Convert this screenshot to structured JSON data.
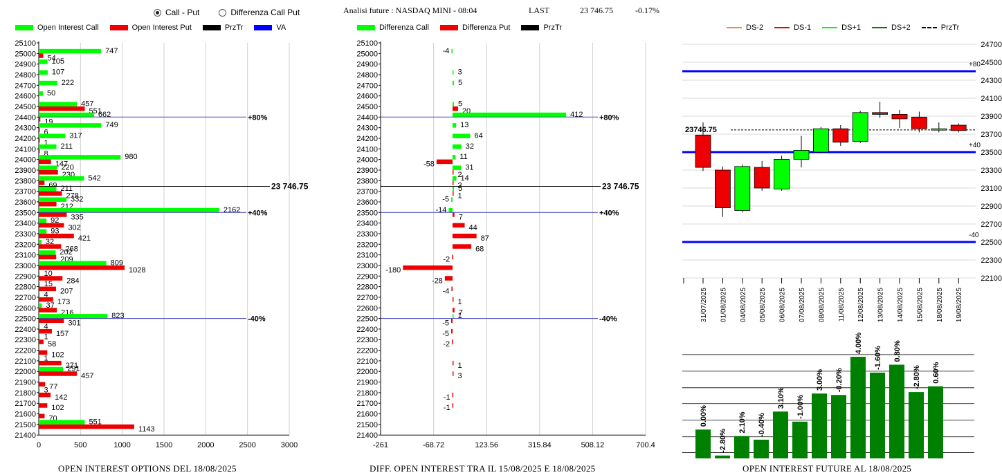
{
  "header": {
    "radio_call_put": "Call - Put",
    "radio_diff": "Differenza Call Put",
    "title": "Analisi future : NASDAQ MINI - 08:04",
    "last_label": "LAST",
    "last_value": "23 746.75",
    "change": "-0.17%"
  },
  "colors": {
    "green": "#00ff00",
    "red": "#ee0000",
    "blue": "#0000ff",
    "dark_green": "#008000",
    "light_red": "#f08060"
  },
  "legend_left": [
    "Open Interest Call",
    "Open Interest Put",
    "PrzTr",
    "VA"
  ],
  "legend_mid": [
    "Differenza Call",
    "Differenza Put",
    "PrzTr"
  ],
  "legend_right": [
    "DS-2",
    "DS-1",
    "DS+1",
    "DS+2",
    "PrzTr"
  ],
  "captions": {
    "left": "OPEN INTEREST OPTIONS DEL 18/08/2025",
    "mid": "DIFF. OPEN INTEREST TRA IL 15/08/2025 E 18/08/2025",
    "right": "OPEN INTEREST FUTURE AL 18/08/2025"
  },
  "chart_data": [
    {
      "type": "bar",
      "orientation": "horizontal",
      "strikes": [
        25100,
        25000,
        24900,
        24800,
        24700,
        24600,
        24500,
        24400,
        24300,
        24200,
        24100,
        24000,
        23900,
        23800,
        23700,
        23600,
        23500,
        23400,
        23300,
        23200,
        23100,
        23000,
        22900,
        22800,
        22700,
        22600,
        22500,
        22400,
        22300,
        22200,
        22100,
        22000,
        21900,
        21800,
        21700,
        21600,
        21500,
        21400
      ],
      "series": [
        {
          "name": "Open Interest Call",
          "values": [
            null,
            747,
            105,
            107,
            222,
            50,
            457,
            662,
            749,
            317,
            211,
            980,
            220,
            542,
            211,
            332,
            2162,
            92,
            93,
            32,
            202,
            809,
            10,
            15,
            4,
            37,
            823,
            4,
            1,
            null,
            1,
            291,
            null,
            3,
            null,
            null,
            551,
            null
          ]
        },
        {
          "name": "Open Interest Put",
          "values": [
            null,
            54,
            null,
            null,
            null,
            null,
            551,
            19,
            6,
            1,
            8,
            147,
            230,
            69,
            278,
            212,
            335,
            302,
            421,
            268,
            209,
            1028,
            284,
            207,
            173,
            216,
            301,
            157,
            58,
            102,
            271,
            457,
            77,
            142,
            102,
            70,
            1143,
            null
          ]
        }
      ],
      "xticks": [
        "0",
        "500",
        "1000",
        "1500",
        "2000",
        "2500",
        "3000"
      ],
      "xlim": [
        0,
        3000
      ],
      "przTr": {
        "value": 23746.75,
        "label": "23 746.75"
      },
      "va_lines": [
        {
          "strike": 24400,
          "label": "+80%"
        },
        {
          "strike": 23500,
          "label": "+40%"
        },
        {
          "strike": 22500,
          "label": "-40%"
        }
      ]
    },
    {
      "type": "bar",
      "orientation": "horizontal",
      "strikes": [
        25100,
        25000,
        24900,
        24800,
        24700,
        24600,
        24500,
        24400,
        24300,
        24200,
        24100,
        24000,
        23900,
        23800,
        23700,
        23600,
        23500,
        23400,
        23300,
        23200,
        23100,
        23000,
        22900,
        22800,
        22700,
        22600,
        22500,
        22400,
        22300,
        22200,
        22100,
        22000,
        21900,
        21800,
        21700,
        21600,
        21500,
        21400
      ],
      "series": [
        {
          "name": "Differenza Call",
          "values": [
            null,
            -4,
            null,
            3,
            5,
            null,
            5,
            412,
            13,
            64,
            32,
            11,
            31,
            14,
            5,
            -5,
            -14,
            null,
            null,
            null,
            null,
            null,
            null,
            null,
            null,
            null,
            1,
            null,
            null,
            null,
            null,
            null,
            null,
            null,
            null,
            null,
            null,
            null
          ]
        },
        {
          "name": "Differenza Put",
          "values": [
            null,
            null,
            null,
            null,
            null,
            null,
            20,
            null,
            null,
            null,
            null,
            -58,
            2,
            2,
            1,
            null,
            7,
            44,
            87,
            68,
            -2,
            -180,
            -28,
            -4,
            1,
            7,
            -5,
            -5,
            -2,
            null,
            1,
            3,
            null,
            -1,
            -1,
            null,
            null,
            null
          ]
        }
      ],
      "xticks": [
        "-261",
        "-68.72",
        "123.56",
        "315.84",
        "508.12",
        "700.4"
      ],
      "xlim": [
        -261,
        700.4
      ],
      "przTr": {
        "value": 23746.75,
        "label": "23 746.75"
      },
      "va_lines": [
        {
          "strike": 24400,
          "label": "+80%"
        },
        {
          "strike": 23500,
          "label": "+40%"
        },
        {
          "strike": 22500,
          "label": "-40%"
        }
      ]
    },
    {
      "type": "candlestick",
      "dates": [
        "31/07/2025",
        "01/08/2025",
        "04/08/2025",
        "05/08/2025",
        "06/08/2025",
        "07/08/2025",
        "08/08/2025",
        "11/08/2025",
        "12/08/2025",
        "13/08/2025",
        "14/08/2025",
        "15/08/2025",
        "18/08/2025",
        "19/08/2025"
      ],
      "open": [
        23690,
        23300,
        22850,
        23330,
        23090,
        23420,
        23500,
        23760,
        23620,
        23940,
        23920,
        23890,
        23760,
        23800
      ],
      "close": [
        23330,
        22880,
        23340,
        23100,
        23420,
        23520,
        23760,
        23610,
        23940,
        23920,
        23870,
        23760,
        23760,
        23740
      ],
      "high": [
        23830,
        23340,
        23360,
        23400,
        23460,
        23680,
        23780,
        23800,
        23960,
        24060,
        23970,
        23950,
        23830,
        23820
      ],
      "low": [
        23290,
        22780,
        22830,
        23070,
        23070,
        23330,
        23490,
        23570,
        23600,
        23880,
        23770,
        23720,
        23720,
        23720
      ],
      "yticks": [
        "22100",
        "22300",
        "22500",
        "22700",
        "22900",
        "23100",
        "23300",
        "23500",
        "23700",
        "23900",
        "24100",
        "24300",
        "24500",
        "24700"
      ],
      "ylim": [
        22100,
        24700
      ],
      "last": {
        "value": 23746.75,
        "label": "23746.75"
      },
      "levels": [
        {
          "value": 24400,
          "label": "+80"
        },
        {
          "value": 23500,
          "label": "+40"
        },
        {
          "value": 22500,
          "label": "-40"
        }
      ]
    },
    {
      "type": "bar",
      "categories": [
        "31/07/2025",
        "01/08/2025",
        "04/08/2025",
        "05/08/2025",
        "06/08/2025",
        "07/08/2025",
        "08/08/2025",
        "11/08/2025",
        "12/08/2025",
        "13/08/2025",
        "14/08/2025",
        "15/08/2025",
        "18/08/2025"
      ],
      "labels": [
        "0.00%",
        "-2.80%",
        "2.10%",
        "-0.40%",
        "3.10%",
        "-1.00%",
        "3.00%",
        "-0.20%",
        "4.00%",
        "-1.60%",
        "0.80%",
        "-2.80%",
        "0.60%"
      ],
      "values": [
        0.4,
        0.04,
        0.31,
        0.26,
        0.65,
        0.51,
        0.9,
        0.88,
        1.41,
        1.19,
        1.3,
        0.92,
        1.0
      ]
    }
  ]
}
